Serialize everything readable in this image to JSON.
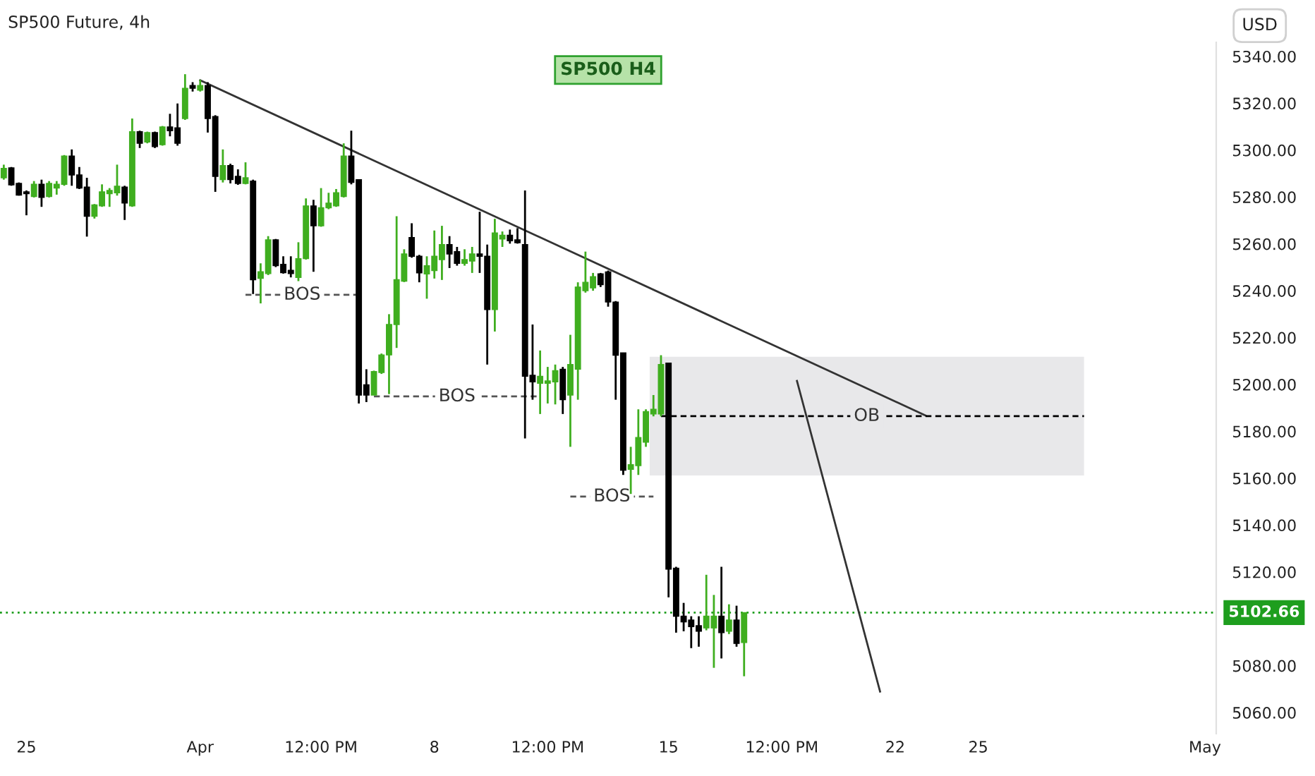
{
  "chart_data": {
    "type": "candlestick",
    "title": "SP500 Future, 4h",
    "ylabel": "USD",
    "categories": [
      null,
      null,
      null,
      "25",
      null,
      null,
      null,
      null,
      null,
      null,
      null,
      null,
      null,
      null,
      null,
      null,
      null,
      null,
      null,
      null,
      null,
      null,
      null,
      null,
      null,
      null,
      "Apr",
      null,
      null,
      null,
      null,
      null,
      null,
      null,
      null,
      null,
      null,
      null,
      null,
      null,
      null,
      null,
      "12:00 PM",
      null,
      null,
      null,
      null,
      null,
      null,
      null,
      null,
      null,
      null,
      null,
      null,
      null,
      null,
      "8",
      null,
      null,
      null,
      null,
      null,
      null,
      null,
      null,
      null,
      null,
      null,
      null,
      null,
      null,
      "12:00 PM",
      null,
      null,
      null,
      null,
      null,
      null,
      null,
      null,
      null,
      null,
      null,
      null,
      null,
      null,
      null,
      "15",
      null,
      null,
      null,
      null,
      null,
      null,
      null,
      null,
      null,
      null,
      null,
      null,
      null,
      null,
      "12:00 PM",
      null,
      null,
      null,
      null,
      null,
      null,
      null,
      null,
      null,
      null,
      null,
      null,
      null,
      null,
      "22",
      null,
      null,
      null,
      null,
      null,
      null,
      null,
      null,
      null,
      null,
      "25",
      null,
      null,
      null,
      null,
      null,
      null,
      null,
      null,
      null,
      null,
      null,
      null,
      null,
      null,
      null,
      null,
      null,
      null,
      null,
      null,
      null,
      null,
      null,
      null,
      null,
      null,
      null,
      null,
      null,
      "May",
      null
    ],
    "ohlc": [
      [
        5288.2,
        5293.8,
        5287.4,
        5292.2
      ],
      [
        5292.4,
        5292.8,
        5284.8,
        5285.2
      ],
      [
        5285.8,
        5286.2,
        5280.6,
        5280.8
      ],
      [
        5282.2,
        5282.8,
        5272.2,
        5281.4
      ],
      [
        5280.2,
        5286.8,
        5279.8,
        5285.4
      ],
      [
        5285.4,
        5287.4,
        5275.8,
        5279.8
      ],
      [
        5280.2,
        5286.8,
        5279.8,
        5285.8
      ],
      [
        5283.8,
        5286.8,
        5281,
        5285.4
      ],
      [
        5285.4,
        5297.9,
        5284.8,
        5297.5
      ],
      [
        5297.5,
        5300.3,
        5284.8,
        5289.4
      ],
      [
        5289.4,
        5292.8,
        5283.4,
        5283.8
      ],
      [
        5284.2,
        5288.2,
        5263.1,
        5271.8
      ],
      [
        5271.8,
        5277,
        5270.8,
        5276.6
      ],
      [
        5276.2,
        5285.4,
        5275.8,
        5282.2
      ],
      [
        5281.4,
        5283.8,
        5275.8,
        5282.8
      ],
      [
        5281.8,
        5293.8,
        5280.6,
        5284.6
      ],
      [
        5284.2,
        5284.8,
        5270.2,
        5277.4
      ],
      [
        5276.2,
        5313.5,
        5275.8,
        5307.9
      ],
      [
        5307.9,
        5308.3,
        5300.9,
        5302.9
      ],
      [
        5303.5,
        5307.9,
        5302.9,
        5307.5
      ],
      [
        5307.5,
        5307.9,
        5300.9,
        5301.5
      ],
      [
        5302.3,
        5310.3,
        5301.9,
        5309.9
      ],
      [
        5309.9,
        5315.5,
        5305.9,
        5308.3
      ],
      [
        5309.5,
        5319.9,
        5301.9,
        5302.9
      ],
      [
        5313.5,
        5332.4,
        5312.9,
        5326.4
      ],
      [
        5327.6,
        5329,
        5325,
        5326.4
      ],
      [
        5325.6,
        5330,
        5325,
        5327.6
      ],
      [
        5327.6,
        5329,
        5307.5,
        5313.5
      ],
      [
        5314.3,
        5314.9,
        5282.2,
        5288.8
      ],
      [
        5287.4,
        5300.3,
        5286.2,
        5293.4
      ],
      [
        5293.4,
        5294.2,
        5285.8,
        5287.4
      ],
      [
        5288.8,
        5291.8,
        5285.2,
        5285.8
      ],
      [
        5285.8,
        5294.8,
        5285.4,
        5288.2
      ],
      [
        5286.8,
        5287.4,
        5238.6,
        5244.7
      ],
      [
        5245.3,
        5251.7,
        5234.6,
        5248.1
      ],
      [
        5247.3,
        5263.3,
        5246.7,
        5261.7
      ],
      [
        5261.7,
        5262.1,
        5250.1,
        5250.7
      ],
      [
        5251.3,
        5254.7,
        5247.3,
        5247.7
      ],
      [
        5248.7,
        5254.7,
        5245.7,
        5247.3
      ],
      [
        5245.7,
        5260.7,
        5244.1,
        5253.7
      ],
      [
        5253.7,
        5279.4,
        5253.3,
        5276.2
      ],
      [
        5276.2,
        5278.8,
        5248.1,
        5267.7
      ],
      [
        5267.7,
        5283.8,
        5267.3,
        5275.4
      ],
      [
        5275.4,
        5281.8,
        5274.8,
        5277.4
      ],
      [
        5276.2,
        5283.4,
        5275.8,
        5281.8
      ],
      [
        5280.2,
        5302.9,
        5279.8,
        5297.5
      ],
      [
        5297.5,
        5308.3,
        5285.4,
        5286.2
      ],
      [
        5287.4,
        5287.4,
        5191.9,
        5195.5
      ],
      [
        5199.9,
        5206.5,
        5192.5,
        5195.5
      ],
      [
        5195.5,
        5205.9,
        5195.5,
        5205.5
      ],
      [
        5205.1,
        5213.2,
        5204.5,
        5212.6
      ],
      [
        5212.6,
        5230,
        5195.9,
        5225.6
      ],
      [
        5225.6,
        5271.8,
        5215.6,
        5244.7
      ],
      [
        5244.1,
        5257.7,
        5243.7,
        5255.7
      ],
      [
        5262.7,
        5268.8,
        5254.1,
        5254.7
      ],
      [
        5254.7,
        5255.3,
        5243.6,
        5247.6
      ],
      [
        5247.2,
        5254.7,
        5236.6,
        5250.7
      ],
      [
        5248.6,
        5265.7,
        5245.2,
        5254.7
      ],
      [
        5253.3,
        5267.7,
        5244.6,
        5259.7
      ],
      [
        5259.7,
        5263.3,
        5249.7,
        5255.7
      ],
      [
        5256.7,
        5258.7,
        5250.7,
        5251.7
      ],
      [
        5251.7,
        5257.7,
        5250.7,
        5253.3
      ],
      [
        5252.7,
        5258.7,
        5247.6,
        5255.7
      ],
      [
        5255.7,
        5273.7,
        5247.6,
        5254.7
      ],
      [
        5254.7,
        5259.7,
        5208.5,
        5232
      ],
      [
        5232,
        5270.7,
        5222.6,
        5264.7
      ],
      [
        5262.1,
        5265.3,
        5258.7,
        5263.7
      ],
      [
        5263.7,
        5266.1,
        5260.1,
        5261.3
      ],
      [
        5261.7,
        5266.7,
        5260.1,
        5260.5
      ],
      [
        5259.7,
        5282.8,
        5177,
        5203.5
      ],
      [
        5203.9,
        5225.6,
        5193.5,
        5201.1
      ],
      [
        5200.5,
        5214.5,
        5187.4,
        5203.5
      ],
      [
        5200.5,
        5207.5,
        5191.9,
        5201.5
      ],
      [
        5201.1,
        5208.5,
        5191.5,
        5205.9
      ],
      [
        5206.5,
        5207.5,
        5187.4,
        5193.5
      ],
      [
        5195.5,
        5221.2,
        5173.4,
        5208.5
      ],
      [
        5206.5,
        5243.6,
        5193.5,
        5241.6
      ],
      [
        5240,
        5256.7,
        5239.2,
        5243.6
      ],
      [
        5241.2,
        5247.6,
        5240,
        5246
      ],
      [
        5247.2,
        5247.6,
        5241.6,
        5242.6
      ],
      [
        5248,
        5248.6,
        5233.2,
        5235.2
      ],
      [
        5235.2,
        5235.6,
        5193.5,
        5212.5
      ],
      [
        5213.5,
        5213.5,
        5161.4,
        5163.4
      ],
      [
        5163.8,
        5173.4,
        5153.3,
        5165.8
      ],
      [
        5165.4,
        5189.4,
        5161.4,
        5177.4
      ],
      [
        5175.4,
        5189.4,
        5173.4,
        5188.4
      ],
      [
        5187.4,
        5195.5,
        5186.4,
        5189.4
      ],
      [
        5187.4,
        5212.5,
        5186.4,
        5208.5
      ],
      [
        5209.1,
        5209.1,
        5109.2,
        5121.2
      ],
      [
        5121.6,
        5122.2,
        5094.1,
        5101.1
      ],
      [
        5101.1,
        5106.8,
        5094.7,
        5098.7
      ],
      [
        5099.5,
        5101.1,
        5087.5,
        5096.7
      ],
      [
        5097.1,
        5101.1,
        5088.1,
        5094.7
      ],
      [
        5096.1,
        5118.8,
        5095.1,
        5101.1
      ],
      [
        5096.1,
        5110.2,
        5079.1,
        5101.1
      ],
      [
        5101.1,
        5122.2,
        5083.1,
        5094.1
      ],
      [
        5094.7,
        5106.2,
        5093.5,
        5099.5
      ],
      [
        5099.5,
        5105.6,
        5088.1,
        5089.5
      ],
      [
        5089.9,
        5102.7,
        5075.5,
        5102.66
      ],
      null,
      null,
      null,
      null,
      null,
      null,
      null,
      null,
      null,
      null,
      null,
      null,
      null,
      null,
      null,
      null,
      null,
      null,
      null,
      null,
      null,
      null,
      null,
      null,
      null,
      null,
      null,
      null,
      null,
      null,
      null,
      null,
      null,
      null,
      null,
      null,
      null,
      null,
      null,
      null,
      null,
      null,
      null,
      null,
      null,
      null,
      null,
      null,
      null,
      null,
      null,
      null,
      null,
      null,
      null,
      null,
      null,
      null,
      null,
      null,
      null,
      null
    ],
    "series": [
      {
        "type": "line",
        "color": "#333333",
        "line_style": "solid",
        "values": [
          null,
          null,
          null,
          null,
          null,
          null,
          null,
          null,
          null,
          null,
          null,
          null,
          null,
          null,
          null,
          null,
          null,
          null,
          null,
          null,
          null,
          null,
          null,
          null,
          null,
          null,
          5329.8,
          null,
          null,
          null,
          null,
          null,
          null,
          null,
          null,
          null,
          null,
          null,
          null,
          null,
          null,
          null,
          null,
          null,
          null,
          null,
          null,
          null,
          null,
          null,
          null,
          null,
          null,
          null,
          null,
          null,
          null,
          null,
          null,
          null,
          null,
          null,
          null,
          null,
          null,
          null,
          null,
          null,
          null,
          null,
          null,
          null,
          null,
          null,
          null,
          null,
          null,
          null,
          null,
          null,
          null,
          null,
          null,
          null,
          null,
          null,
          null,
          null,
          null,
          null,
          null,
          null,
          null,
          null,
          null,
          null,
          null,
          null,
          null,
          null,
          null,
          null,
          null,
          null,
          null,
          null,
          null,
          null,
          null,
          null,
          null,
          null,
          null,
          null,
          null,
          null,
          null,
          null,
          null,
          null,
          null,
          null,
          5186.8,
          null,
          null,
          null,
          null,
          null,
          null,
          null,
          null,
          null,
          null,
          null,
          null,
          null,
          null,
          null,
          null,
          null,
          null,
          null,
          null,
          null,
          null,
          null,
          null,
          null,
          null,
          null,
          null,
          null,
          null,
          null,
          null,
          null,
          null,
          null,
          null,
          null,
          null
        ]
      },
      {
        "type": "line",
        "color": "#333333",
        "line_style": "solid",
        "values": [
          null,
          null,
          null,
          null,
          null,
          null,
          null,
          null,
          null,
          null,
          null,
          null,
          null,
          null,
          null,
          null,
          null,
          null,
          null,
          null,
          null,
          null,
          null,
          null,
          null,
          null,
          null,
          null,
          null,
          null,
          null,
          null,
          null,
          null,
          null,
          null,
          null,
          null,
          null,
          null,
          null,
          null,
          null,
          null,
          null,
          null,
          null,
          null,
          null,
          null,
          null,
          null,
          null,
          null,
          null,
          null,
          null,
          null,
          null,
          null,
          null,
          null,
          null,
          null,
          null,
          null,
          null,
          null,
          null,
          null,
          null,
          null,
          null,
          null,
          null,
          null,
          null,
          null,
          null,
          null,
          null,
          null,
          null,
          null,
          null,
          null,
          null,
          null,
          null,
          null,
          null,
          null,
          null,
          null,
          null,
          null,
          null,
          null,
          null,
          null,
          null,
          null,
          null,
          null,
          null,
          5201.5,
          null,
          null,
          null,
          null,
          null,
          null,
          null,
          null,
          null,
          null,
          5069,
          null,
          null,
          null,
          null,
          null,
          null,
          null,
          null,
          null,
          null,
          null,
          null,
          null,
          null,
          null,
          null,
          null,
          null,
          null,
          null,
          null,
          null,
          null,
          null,
          null,
          null,
          null,
          null,
          null,
          null,
          null,
          null,
          null,
          null,
          null,
          null,
          null,
          null,
          null,
          null,
          null,
          null,
          null,
          null
        ]
      },
      {
        "type": "line",
        "color": "#555555",
        "line_style": "dashed",
        "values": [
          null,
          null,
          null,
          null,
          null,
          null,
          null,
          null,
          null,
          null,
          null,
          null,
          null,
          null,
          null,
          null,
          null,
          null,
          null,
          null,
          null,
          null,
          null,
          null,
          null,
          null,
          null,
          null,
          null,
          null,
          null,
          null,
          5238.3,
          5238.3,
          5238.3,
          5238.3,
          5238.3,
          5238.3,
          5238.3,
          5238.3,
          5238.3,
          5238.3,
          5238.3,
          5238.3,
          5238.3,
          5238.3,
          5238.3,
          5238.3,
          null,
          null,
          null,
          null,
          null,
          null,
          null,
          null,
          null,
          null,
          null,
          null,
          null,
          null,
          null,
          null,
          null,
          null,
          null,
          null,
          null,
          null,
          null,
          null,
          null,
          null,
          null,
          null,
          null,
          null,
          null,
          null,
          null,
          null,
          null,
          null,
          null,
          null,
          null,
          null,
          null,
          null,
          null,
          null,
          null,
          null,
          null,
          null,
          null,
          null,
          null,
          null,
          null,
          null,
          null,
          null,
          null,
          null,
          null,
          null,
          null,
          null,
          null,
          null,
          null,
          null,
          null,
          null,
          null,
          null,
          null,
          null,
          null,
          null,
          null,
          null,
          null,
          null,
          null,
          null,
          null,
          null,
          null,
          null,
          null,
          null,
          null,
          null,
          null,
          null,
          null,
          null,
          null,
          null,
          null,
          null,
          null,
          null,
          null,
          null,
          null,
          null,
          null,
          null,
          null,
          null,
          null,
          null,
          null,
          null,
          null,
          null,
          null
        ]
      },
      {
        "type": "line",
        "color": "#555555",
        "line_style": "dashed",
        "values": [
          null,
          null,
          null,
          null,
          null,
          null,
          null,
          null,
          null,
          null,
          null,
          null,
          null,
          null,
          null,
          null,
          null,
          null,
          null,
          null,
          null,
          null,
          null,
          null,
          null,
          null,
          null,
          null,
          null,
          null,
          null,
          null,
          null,
          null,
          null,
          null,
          null,
          null,
          null,
          null,
          null,
          null,
          null,
          null,
          null,
          null,
          null,
          null,
          null,
          5194.9,
          5194.9,
          5194.9,
          5194.9,
          5194.9,
          5194.9,
          5194.9,
          5194.9,
          5194.9,
          5194.9,
          5194.9,
          5194.9,
          5194.9,
          5194.9,
          5194.9,
          5194.9,
          5194.9,
          5194.9,
          5194.9,
          5194.9,
          5194.9,
          5194.9,
          5194.9,
          null,
          null,
          null,
          null,
          null,
          null,
          null,
          null,
          null,
          null,
          null,
          null,
          null,
          null,
          null,
          null,
          null,
          null,
          null,
          null,
          null,
          null,
          null,
          null,
          null,
          null,
          null,
          null,
          null,
          null,
          null,
          null,
          null,
          null,
          null,
          null,
          null,
          null,
          null,
          null,
          null,
          null,
          null,
          null,
          null,
          null,
          null,
          null,
          null,
          null,
          null,
          null,
          null,
          null,
          null,
          null,
          null,
          null,
          null,
          null,
          null,
          null,
          null,
          null,
          null,
          null,
          null,
          null,
          null,
          null,
          null,
          null,
          null,
          null,
          null,
          null,
          null,
          null,
          null,
          null,
          null,
          null,
          null,
          null,
          null,
          null,
          null,
          null,
          null
        ]
      },
      {
        "type": "line",
        "color": "#555555",
        "line_style": "dashed",
        "values": [
          null,
          null,
          null,
          null,
          null,
          null,
          null,
          null,
          null,
          null,
          null,
          null,
          null,
          null,
          null,
          null,
          null,
          null,
          null,
          null,
          null,
          null,
          null,
          null,
          null,
          null,
          null,
          null,
          null,
          null,
          null,
          null,
          null,
          null,
          null,
          null,
          null,
          null,
          null,
          null,
          null,
          null,
          null,
          null,
          null,
          null,
          null,
          null,
          null,
          null,
          null,
          null,
          null,
          null,
          null,
          null,
          null,
          null,
          null,
          null,
          null,
          null,
          null,
          null,
          null,
          null,
          null,
          null,
          null,
          null,
          null,
          null,
          null,
          null,
          null,
          5152.2,
          5152.2,
          5152.2,
          5152.2,
          5152.2,
          5152.2,
          5152.2,
          5152.2,
          5152.2,
          5152.2,
          5152.2,
          5152.2,
          null,
          null,
          null,
          null,
          null,
          null,
          null,
          null,
          null,
          null,
          null,
          null,
          null,
          null,
          null,
          null,
          null,
          null,
          null,
          null,
          null,
          null,
          null,
          null,
          null,
          null,
          null,
          null,
          null,
          null,
          null,
          null,
          null,
          null,
          null,
          null,
          null,
          null,
          null,
          null,
          null,
          null,
          null,
          null,
          null,
          null,
          null,
          null,
          null,
          null,
          null,
          null,
          null,
          null,
          null,
          null,
          null,
          null,
          null,
          null,
          null,
          null,
          null,
          null,
          null,
          null,
          null,
          null,
          null,
          null,
          null,
          null,
          null,
          null
        ]
      },
      {
        "type": "line",
        "color": "#000000",
        "line_style": "dashed",
        "values": [
          null,
          null,
          null,
          null,
          null,
          null,
          null,
          null,
          null,
          null,
          null,
          null,
          null,
          null,
          null,
          null,
          null,
          null,
          null,
          null,
          null,
          null,
          null,
          null,
          null,
          null,
          null,
          null,
          null,
          null,
          null,
          null,
          null,
          null,
          null,
          null,
          null,
          null,
          null,
          null,
          null,
          null,
          null,
          null,
          null,
          null,
          null,
          null,
          null,
          null,
          null,
          null,
          null,
          null,
          null,
          null,
          null,
          null,
          null,
          null,
          null,
          null,
          null,
          null,
          null,
          null,
          null,
          null,
          null,
          null,
          null,
          null,
          null,
          null,
          null,
          null,
          null,
          null,
          null,
          null,
          null,
          null,
          null,
          null,
          null,
          null,
          null,
          5186.5,
          5186.5,
          5186.5,
          5186.5,
          5186.5,
          5186.5,
          5186.5,
          5186.5,
          5186.5,
          5186.5,
          5186.5,
          5186.5,
          5186.5,
          5186.5,
          5186.5,
          5186.5,
          5186.5,
          5186.5,
          5186.5,
          5186.5,
          5186.5,
          5186.5,
          5186.5,
          5186.5,
          5186.5,
          5186.5,
          5186.5,
          5186.5,
          5186.5,
          5186.5,
          5186.5,
          5186.5,
          5186.5,
          5186.5,
          5186.5,
          5186.5,
          5186.5,
          5186.5,
          5186.5,
          5186.5,
          5186.5,
          5186.5,
          5186.5,
          5186.5,
          5186.5,
          5186.5,
          5186.5,
          5186.5,
          5186.5,
          5186.5,
          5186.5,
          5186.5,
          5186.5,
          5186.5,
          5186.5,
          5186.5,
          5186.5,
          null,
          null,
          null,
          null,
          null,
          null,
          null,
          null,
          null,
          null,
          null,
          null,
          null,
          null,
          null,
          null,
          null
        ]
      }
    ],
    "annotations": [
      "BOS",
      "BOS",
      "BOS",
      "SP500 H4"
    ],
    "bands": [
      {
        "axis": "y",
        "from": 5161.2,
        "to": 5211.8,
        "label": "OB",
        "color": "#e8e8ea"
      }
    ],
    "ref_lines": [
      {
        "axis": "y",
        "value": 5102.66,
        "label": "5102.66",
        "color": "#1e9e1e",
        "line_style": "dotted"
      }
    ],
    "ylim": [
      5051,
      5346
    ],
    "yticks": [
      {
        "value": 5060,
        "label": "5060.00"
      },
      {
        "value": 5080,
        "label": "5080.00"
      },
      {
        "value": 5120,
        "label": "5120.00"
      },
      {
        "value": 5140,
        "label": "5140.00"
      },
      {
        "value": 5160,
        "label": "5160.00"
      },
      {
        "value": 5180,
        "label": "5180.00"
      },
      {
        "value": 5200,
        "label": "5200.00"
      },
      {
        "value": 5220,
        "label": "5220.00"
      },
      {
        "value": 5240,
        "label": "5240.00"
      },
      {
        "value": 5260,
        "label": "5260.00"
      },
      {
        "value": 5280,
        "label": "5280.00"
      },
      {
        "value": 5300,
        "label": "5300.00"
      },
      {
        "value": 5320,
        "label": "5320.00"
      },
      {
        "value": 5340,
        "label": "5340.00"
      }
    ],
    "grid": false,
    "legend": false,
    "marker": "none"
  }
}
